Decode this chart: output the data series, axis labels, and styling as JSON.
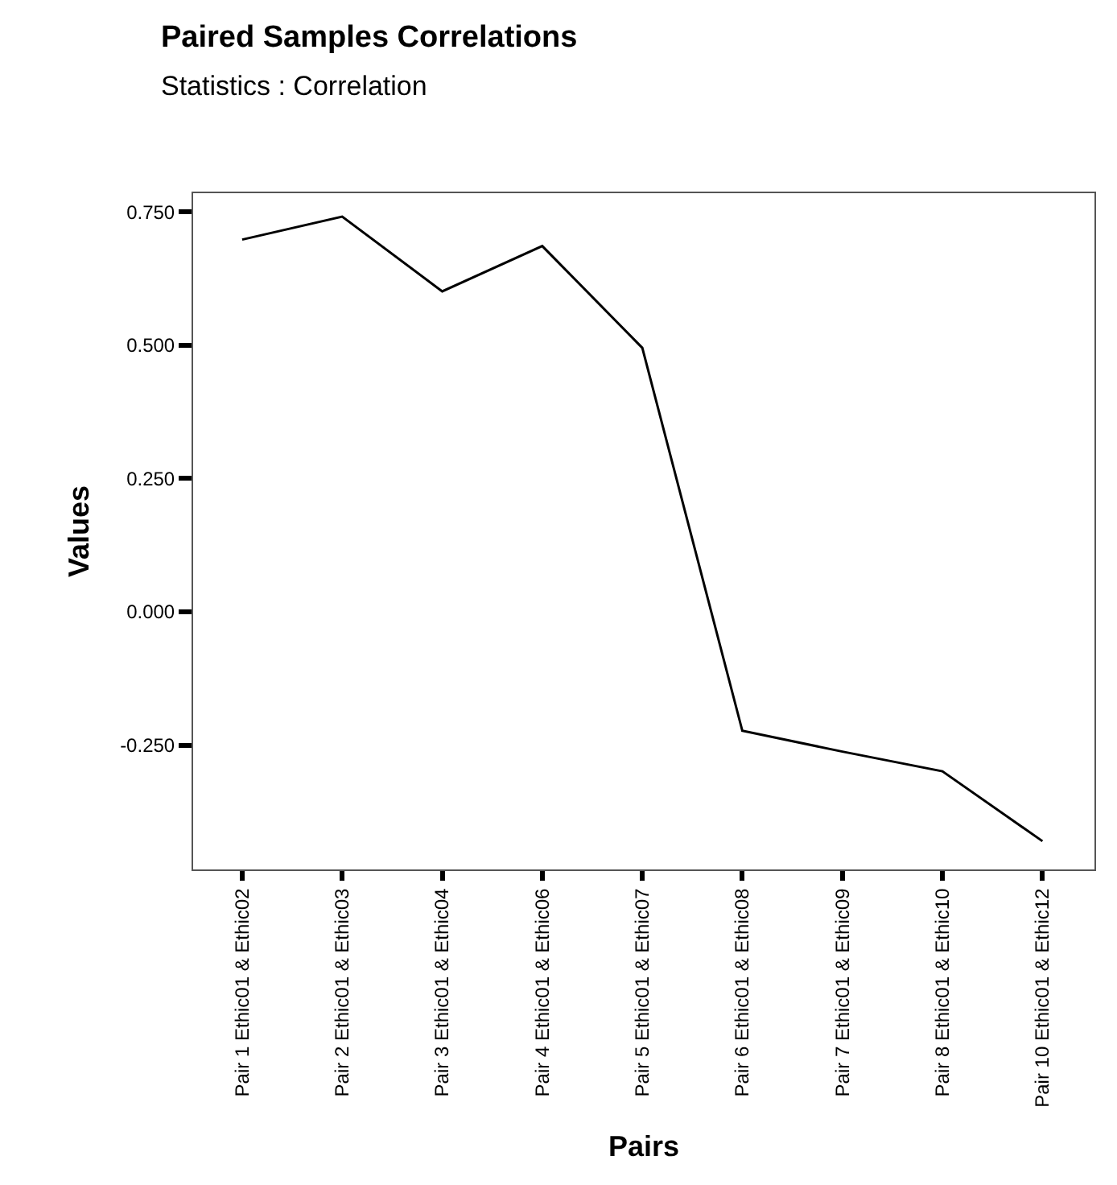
{
  "chart_data": {
    "type": "line",
    "title": "Paired Samples Correlations",
    "subtitle": "Statistics : Correlation",
    "xlabel": "Pairs",
    "ylabel": "Values",
    "categories": [
      "Pair 1 Ethic01 & Ethic02",
      "Pair 2 Ethic01 & Ethic03",
      "Pair 3 Ethic01 & Ethic04",
      "Pair 4 Ethic01 & Ethic06",
      "Pair 5 Ethic01 & Ethic07",
      "Pair 6 Ethic01 & Ethic08",
      "Pair 7 Ethic01 & Ethic09",
      "Pair 8 Ethic01 & Ethic10",
      "Pair 10 Ethic01 & Ethic12"
    ],
    "series": [
      {
        "color": "#000000",
        "values": [
          0.698,
          0.741,
          0.601,
          0.686,
          0.495,
          -0.223,
          -0.262,
          -0.299,
          -0.43
        ]
      }
    ],
    "ylim": [
      -0.483,
      0.785
    ],
    "yticks": [
      {
        "value": -0.25,
        "label": "-0.250"
      },
      {
        "value": 0,
        "label": "0.000"
      },
      {
        "value": 0.25,
        "label": "0.250"
      },
      {
        "value": 0.5,
        "label": "0.500"
      },
      {
        "value": 0.75,
        "label": "0.750"
      }
    ],
    "marker": "none",
    "line_style": "solid"
  }
}
